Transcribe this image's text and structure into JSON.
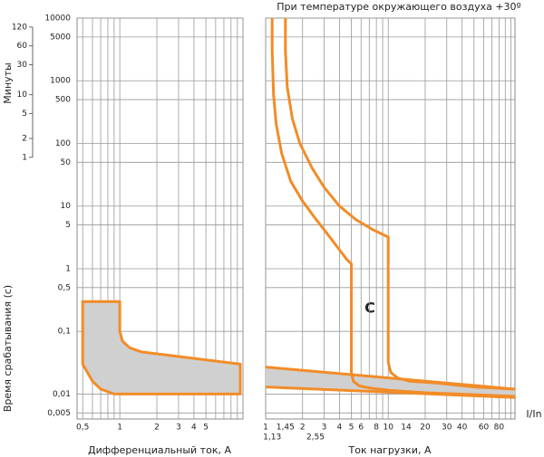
{
  "chart_data": [
    {
      "type": "area",
      "x_label": "Дифференциальный ток, А",
      "y_label": "Время срабатывания (с)",
      "y2_label": "Минуты",
      "xlim": [
        0.45,
        10
      ],
      "xticks": [
        {
          "value": 0.5,
          "label": "0,5"
        },
        1,
        2,
        3,
        4,
        5
      ],
      "xgrid": [
        0.5,
        0.6,
        0.7,
        0.8,
        0.9,
        1,
        2,
        3,
        4,
        5,
        6,
        7,
        8,
        9,
        10
      ],
      "ylim": [
        0.004,
        10000
      ],
      "yticks": [
        10000,
        5000,
        1000,
        500,
        100,
        50,
        10,
        5,
        1,
        {
          "value": 0.5,
          "label": "0,5"
        },
        {
          "value": 0.1,
          "label": "0,1"
        },
        {
          "value": 0.01,
          "label": "0,01"
        },
        {
          "value": 0.005,
          "label": "0,005"
        }
      ],
      "y2lim": [
        6.67e-05,
        166.67
      ],
      "y2ticks": [
        120,
        60,
        30,
        10,
        5,
        2,
        1
      ],
      "color": "#f28c28",
      "fill": "#d0d0d0",
      "series": [
        {
          "x": [
            0.5,
            1,
            1,
            1.05,
            1.2,
            1.5,
            9.5,
            9.5,
            1.4,
            0.9,
            0.7,
            0.6,
            0.5
          ],
          "values": [
            0.3,
            0.3,
            0.1,
            0.07,
            0.055,
            0.047,
            0.03,
            0.01,
            0.01,
            0.01,
            0.012,
            0.016,
            0.03
          ]
        }
      ]
    },
    {
      "type": "line",
      "title": "При температуре окружающего воздуха +30º",
      "x_label": "Ток нагрузки, А",
      "x_label_end": "I/In",
      "annotation": "C",
      "xlim": [
        1,
        108
      ],
      "xticks": [
        1,
        {
          "value": 1.45,
          "label": "1,45"
        },
        2,
        3,
        4,
        5,
        6,
        8,
        10,
        14,
        20,
        30,
        40,
        60,
        80
      ],
      "xticks_lower": [
        {
          "value": 1.13,
          "label": "1,13"
        },
        {
          "value": 2.55,
          "label": "2,55"
        }
      ],
      "xgrid": [
        1,
        2,
        3,
        4,
        5,
        6,
        7,
        8,
        9,
        10,
        20,
        30,
        40,
        50,
        60,
        70,
        80,
        90,
        100
      ],
      "ylim": [
        0.004,
        10000
      ],
      "color": "#f28c28",
      "fill": "#d0d0d0",
      "band": {
        "x": [
          1,
          108
        ],
        "upper": [
          0.027,
          0.012
        ],
        "lower": [
          0.013,
          0.0088
        ]
      },
      "series": [
        {
          "x": [
            1.13,
            1.13,
            1.16,
            1.22,
            1.35,
            1.6,
            2,
            2.6,
            3.3,
            4,
            4.6,
            5,
            5,
            5.2,
            5.8,
            7,
            10,
            20,
            50,
            108
          ],
          "values": [
            10000,
            3000,
            600,
            200,
            70,
            25,
            12,
            6,
            3.3,
            2,
            1.4,
            1.2,
            0.022,
            0.016,
            0.0135,
            0.0125,
            0.0115,
            0.0105,
            0.0098,
            0.0092
          ]
        },
        {
          "x": [
            1.45,
            1.45,
            1.5,
            1.65,
            1.9,
            2.4,
            3,
            4,
            5.5,
            7.5,
            10,
            10,
            10.5,
            12,
            15,
            25,
            50,
            108
          ],
          "values": [
            10000,
            3000,
            800,
            250,
            100,
            40,
            20,
            10,
            6,
            4.2,
            3.2,
            0.032,
            0.022,
            0.018,
            0.016,
            0.015,
            0.013,
            0.012
          ]
        }
      ]
    }
  ]
}
